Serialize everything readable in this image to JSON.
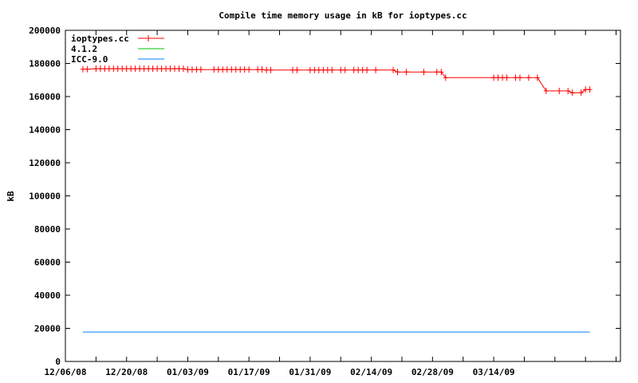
{
  "chart_data": {
    "type": "line",
    "title": "Compile time memory usage in kB for ioptypes.cc",
    "xlabel": "",
    "ylabel": "kB",
    "xlim": [
      "2008-12-06",
      "2009-04-12"
    ],
    "ylim": [
      0,
      200000
    ],
    "yticks": [
      0,
      20000,
      40000,
      60000,
      80000,
      100000,
      120000,
      140000,
      160000,
      180000,
      200000
    ],
    "xtick_labels": [
      "12/06/08",
      "12/20/08",
      "01/03/09",
      "01/17/09",
      "01/31/09",
      "02/14/09",
      "02/28/09",
      "03/14/09"
    ],
    "xtick_dates": [
      "2008-12-06",
      "2008-12-20",
      "2009-01-03",
      "2009-01-17",
      "2009-01-31",
      "2009-02-14",
      "2009-02-28",
      "2009-03-14"
    ],
    "grid": false,
    "legend": "top-left",
    "series": [
      {
        "name": "ioptypes.cc",
        "color": "#ff0000",
        "marker": "plus",
        "x": [
          "2008-12-10",
          "2008-12-11",
          "2008-12-13",
          "2008-12-14",
          "2008-12-15",
          "2008-12-16",
          "2008-12-17",
          "2008-12-18",
          "2008-12-19",
          "2008-12-20",
          "2008-12-21",
          "2008-12-22",
          "2008-12-23",
          "2008-12-24",
          "2008-12-25",
          "2008-12-26",
          "2008-12-27",
          "2008-12-28",
          "2008-12-29",
          "2008-12-30",
          "2008-12-31",
          "2009-01-01",
          "2009-01-02",
          "2009-01-03",
          "2009-01-04",
          "2009-01-05",
          "2009-01-06",
          "2009-01-09",
          "2009-01-10",
          "2009-01-11",
          "2009-01-12",
          "2009-01-13",
          "2009-01-14",
          "2009-01-15",
          "2009-01-16",
          "2009-01-17",
          "2009-01-19",
          "2009-01-20",
          "2009-01-21",
          "2009-01-22",
          "2009-01-27",
          "2009-01-28",
          "2009-01-31",
          "2009-02-01",
          "2009-02-02",
          "2009-02-03",
          "2009-02-04",
          "2009-02-05",
          "2009-02-07",
          "2009-02-08",
          "2009-02-10",
          "2009-02-11",
          "2009-02-12",
          "2009-02-13",
          "2009-02-15",
          "2009-02-19",
          "2009-02-20",
          "2009-02-22",
          "2009-02-26",
          "2009-03-01",
          "2009-03-02",
          "2009-03-03",
          "2009-03-14",
          "2009-03-15",
          "2009-03-16",
          "2009-03-17",
          "2009-03-19",
          "2009-03-20",
          "2009-03-22",
          "2009-03-24",
          "2009-03-26",
          "2009-03-29",
          "2009-03-31",
          "2009-04-01",
          "2009-04-03",
          "2009-04-04",
          "2009-04-05"
        ],
        "values": [
          176500,
          176500,
          176800,
          176800,
          176800,
          176800,
          176800,
          176800,
          176800,
          176800,
          176800,
          176800,
          176800,
          176800,
          176800,
          176800,
          176800,
          176800,
          176800,
          176800,
          176800,
          176800,
          176800,
          176300,
          176300,
          176300,
          176300,
          176300,
          176300,
          176300,
          176300,
          176300,
          176300,
          176300,
          176300,
          176300,
          176300,
          176300,
          176000,
          176000,
          176000,
          176000,
          176000,
          176000,
          176000,
          176000,
          176000,
          176000,
          176000,
          176000,
          176000,
          176000,
          176000,
          176000,
          176000,
          176000,
          174800,
          174800,
          174800,
          174800,
          174800,
          171400,
          171400,
          171400,
          171400,
          171400,
          171400,
          171400,
          171400,
          171400,
          163400,
          163400,
          163400,
          162300,
          162300,
          164200,
          164200
        ]
      },
      {
        "name": "4.1.2",
        "color": "#00c000",
        "x": [],
        "values": []
      },
      {
        "name": "ICC-9.0",
        "color": "#0080ff",
        "x": [
          "2008-12-10",
          "2009-04-05"
        ],
        "values": [
          17800,
          17800
        ]
      }
    ]
  }
}
